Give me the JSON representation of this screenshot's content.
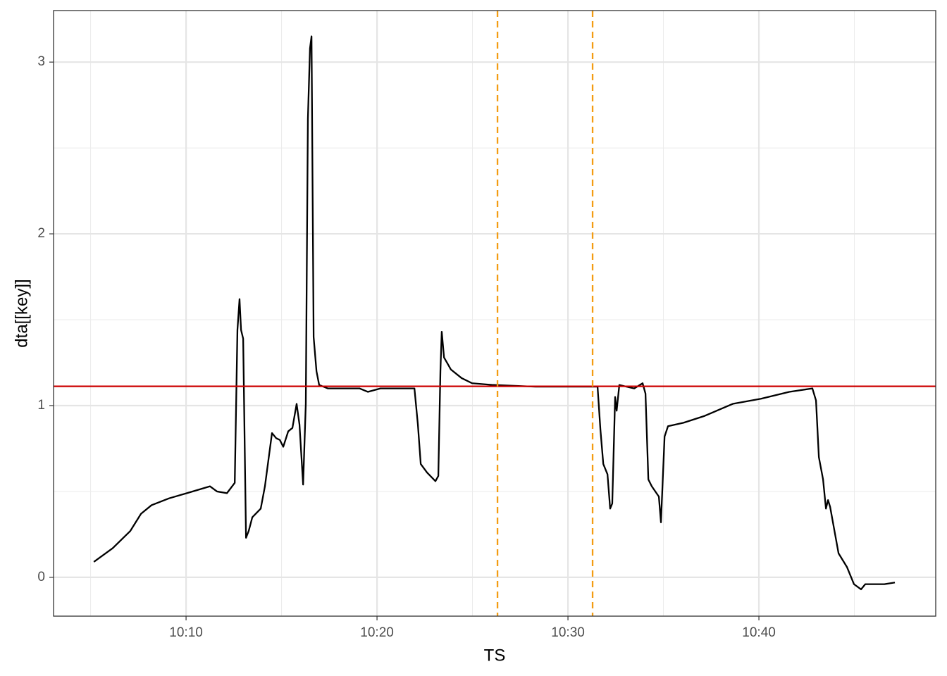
{
  "chart_data": {
    "type": "line",
    "x_label": "TS",
    "y_label": "dta[[key]]",
    "xlim": [
      603.06,
      649.26
    ],
    "ylim": [
      -0.226,
      3.3
    ],
    "xticks": [
      {
        "value": 610,
        "label": "10:10"
      },
      {
        "value": 620,
        "label": "10:20"
      },
      {
        "value": 630,
        "label": "10:30"
      },
      {
        "value": 640,
        "label": "10:40"
      }
    ],
    "yticks": [
      0,
      1,
      2,
      3
    ],
    "xminor": [
      605,
      615,
      625,
      635,
      645
    ],
    "yminor": [
      0.5,
      1.5,
      2.5
    ],
    "grid": true,
    "hline": {
      "value": 1.112,
      "color": "#cc0000"
    },
    "vlines": {
      "values": [
        626.31,
        631.29
      ],
      "color": "#f39c12"
    },
    "x": [
      605.17,
      606.16,
      607.08,
      607.64,
      608.19,
      609.11,
      610.04,
      611.25,
      611.62,
      612.14,
      612.55,
      612.69,
      612.8,
      612.88,
      612.99,
      613.14,
      613.28,
      613.47,
      613.91,
      614.13,
      614.5,
      614.72,
      614.91,
      615.09,
      615.35,
      615.57,
      615.79,
      615.94,
      616.13,
      616.27,
      616.38,
      616.49,
      616.57,
      616.68,
      616.83,
      616.97,
      617.42,
      618.34,
      619.08,
      619.52,
      620.18,
      621.96,
      622.14,
      622.29,
      622.62,
      623.06,
      623.21,
      623.32,
      623.39,
      623.51,
      623.87,
      624.43,
      624.98,
      626.09,
      628.3,
      631.18,
      631.55,
      631.7,
      631.85,
      632.07,
      632.21,
      632.32,
      632.47,
      632.55,
      632.69,
      633.47,
      633.91,
      634.06,
      634.21,
      634.39,
      634.76,
      634.87,
      635.06,
      635.24,
      636.05,
      637.16,
      638.63,
      640.11,
      641.59,
      642.8,
      642.99,
      643.14,
      643.36,
      643.51,
      643.62,
      643.73,
      644.17,
      644.61,
      644.98,
      645.35,
      645.57,
      646.57,
      647.12
    ],
    "series": [
      {
        "color": "#000000",
        "values": [
          0.09,
          0.17,
          0.27,
          0.37,
          0.42,
          0.46,
          0.49,
          0.53,
          0.5,
          0.49,
          0.55,
          1.44,
          1.62,
          1.44,
          1.39,
          0.23,
          0.27,
          0.35,
          0.4,
          0.53,
          0.84,
          0.81,
          0.8,
          0.76,
          0.85,
          0.87,
          1.01,
          0.89,
          0.54,
          1.01,
          2.67,
          3.08,
          3.15,
          1.4,
          1.2,
          1.12,
          1.1,
          1.1,
          1.1,
          1.08,
          1.1,
          1.1,
          0.89,
          0.66,
          0.61,
          0.56,
          0.59,
          1.2,
          1.43,
          1.28,
          1.21,
          1.16,
          1.13,
          1.12,
          1.11,
          1.11,
          1.11,
          0.86,
          0.66,
          0.6,
          0.4,
          0.43,
          1.05,
          0.97,
          1.12,
          1.1,
          1.13,
          1.07,
          0.57,
          0.53,
          0.47,
          0.32,
          0.82,
          0.88,
          0.9,
          0.94,
          1.01,
          1.04,
          1.08,
          1.1,
          1.03,
          0.7,
          0.57,
          0.4,
          0.45,
          0.41,
          0.14,
          0.06,
          -0.04,
          -0.07,
          -0.04,
          -0.04,
          -0.03
        ]
      }
    ]
  }
}
